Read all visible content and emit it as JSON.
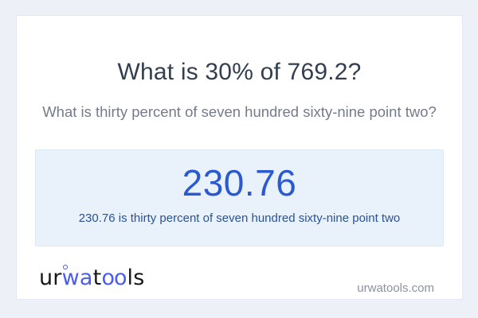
{
  "question": {
    "title": "What is 30% of 769.2?",
    "subtitle": "What is thirty percent of seven hundred sixty-nine point two?"
  },
  "answer": {
    "value": "230.76",
    "sentence": "230.76 is thirty percent of seven hundred sixty-nine point two"
  },
  "footer": {
    "logo": {
      "seg1": "ur",
      "seg2": "wa",
      "seg3": "t",
      "seg4": "oo",
      "seg5": "ls"
    },
    "domain": "urwatools.com"
  },
  "colors": {
    "page_bg": "#eef0f7",
    "card_bg": "#ffffff",
    "card_border": "#e4e7f3",
    "title_text": "#333e50",
    "subtitle_text": "#737b8c",
    "answer_panel_bg": "#e9f1fb",
    "answer_panel_border": "#dce9f8",
    "answer_value_text": "#2b59d0",
    "answer_sentence_text": "#2b5394",
    "logo_dark": "#17181a",
    "logo_accent": "#4b5cf0",
    "domain_text": "#8b919e"
  }
}
